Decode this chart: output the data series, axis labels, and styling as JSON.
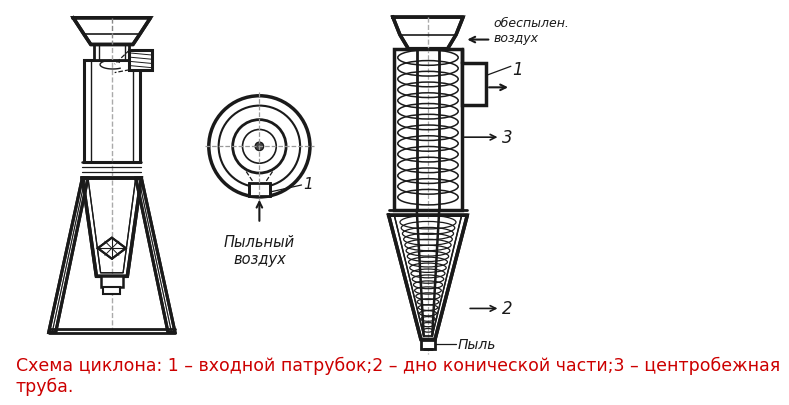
{
  "caption": "Схема циклона: 1 – входной патрубок;2 – дно конической части;3 – центробежная\nтруба.",
  "caption_color": "#cc0000",
  "caption_fontsize": 12.5,
  "bg_color": "#ffffff",
  "line_color": "#1a1a1a",
  "label_pylny_vozduh": "Пыльный\nвоздух",
  "label_obespylenny": "обеспылен.\nвоздух",
  "label_pyl": "Пыль",
  "label_1": "1",
  "label_2": "2",
  "label_3": "3"
}
